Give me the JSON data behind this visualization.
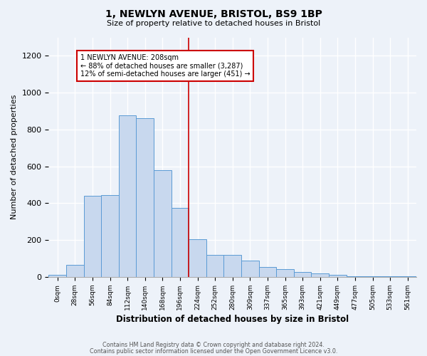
{
  "title1": "1, NEWLYN AVENUE, BRISTOL, BS9 1BP",
  "title2": "Size of property relative to detached houses in Bristol",
  "xlabel": "Distribution of detached houses by size in Bristol",
  "ylabel": "Number of detached properties",
  "bar_labels": [
    "0sqm",
    "28sqm",
    "56sqm",
    "84sqm",
    "112sqm",
    "140sqm",
    "168sqm",
    "196sqm",
    "224sqm",
    "252sqm",
    "280sqm",
    "309sqm",
    "337sqm",
    "365sqm",
    "393sqm",
    "421sqm",
    "449sqm",
    "477sqm",
    "505sqm",
    "533sqm",
    "561sqm"
  ],
  "bar_values": [
    10,
    65,
    440,
    445,
    875,
    860,
    580,
    375,
    205,
    120,
    120,
    90,
    55,
    42,
    25,
    18,
    10,
    5,
    5,
    3,
    5
  ],
  "bar_color": "#c8d8ee",
  "bar_edge_color": "#5b9bd5",
  "ylim": [
    0,
    1300
  ],
  "yticks": [
    0,
    200,
    400,
    600,
    800,
    1000,
    1200
  ],
  "vline_x": 7.5,
  "vline_color": "#cc0000",
  "annotation_text": "1 NEWLYN AVENUE: 208sqm\n← 88% of detached houses are smaller (3,287)\n12% of semi-detached houses are larger (451) →",
  "annotation_box_color": "white",
  "annotation_box_edge": "#cc0000",
  "footer1": "Contains HM Land Registry data © Crown copyright and database right 2024.",
  "footer2": "Contains public sector information licensed under the Open Government Licence v3.0.",
  "background_color": "#edf2f9",
  "grid_color": "white"
}
